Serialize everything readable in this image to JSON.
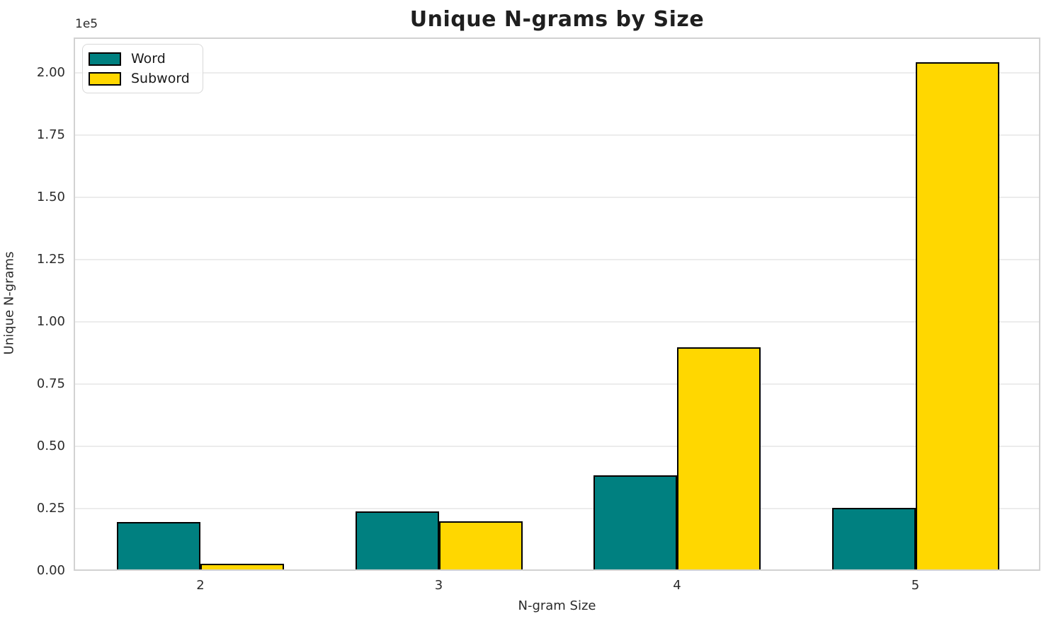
{
  "title": "Unique N-grams by Size",
  "offset_text": "1e5",
  "axes": {
    "xlabel": "N-gram Size",
    "ylabel": "Unique N-grams"
  },
  "legend": {
    "position": "upper left",
    "items": [
      {
        "label": "Word",
        "color": "#008080"
      },
      {
        "label": "Subword",
        "color": "#FFD700"
      }
    ]
  },
  "colors": {
    "word": "#008080",
    "subword": "#FFD700",
    "bar_edge": "#000000",
    "gridline": "#ececec",
    "spine": "#d2d2d2",
    "tick_text": "#2b2b2b",
    "title_text": "#1f1f1f",
    "background": "#ffffff"
  },
  "chart_data": {
    "type": "bar",
    "title": "Unique N-grams by Size",
    "xlabel": "N-gram Size",
    "ylabel": "Unique N-grams",
    "categories": [
      "2",
      "3",
      "4",
      "5"
    ],
    "series": [
      {
        "name": "Word",
        "color": "#008080",
        "values": [
          19600,
          23900,
          38300,
          25300
        ]
      },
      {
        "name": "Subword",
        "color": "#FFD700",
        "values": [
          2800,
          19900,
          89800,
          204300
        ]
      }
    ],
    "ylim": [
      0,
      214200
    ],
    "yticks": [
      0,
      25000,
      50000,
      75000,
      100000,
      125000,
      150000,
      175000,
      200000
    ],
    "ytick_labels": [
      "0.00",
      "0.25",
      "0.50",
      "0.75",
      "1.00",
      "1.25",
      "1.50",
      "1.75",
      "2.00"
    ],
    "y_offset_text": "1e5",
    "grid": true,
    "bar_edge_color": "#000000",
    "legend_position": "upper left"
  }
}
